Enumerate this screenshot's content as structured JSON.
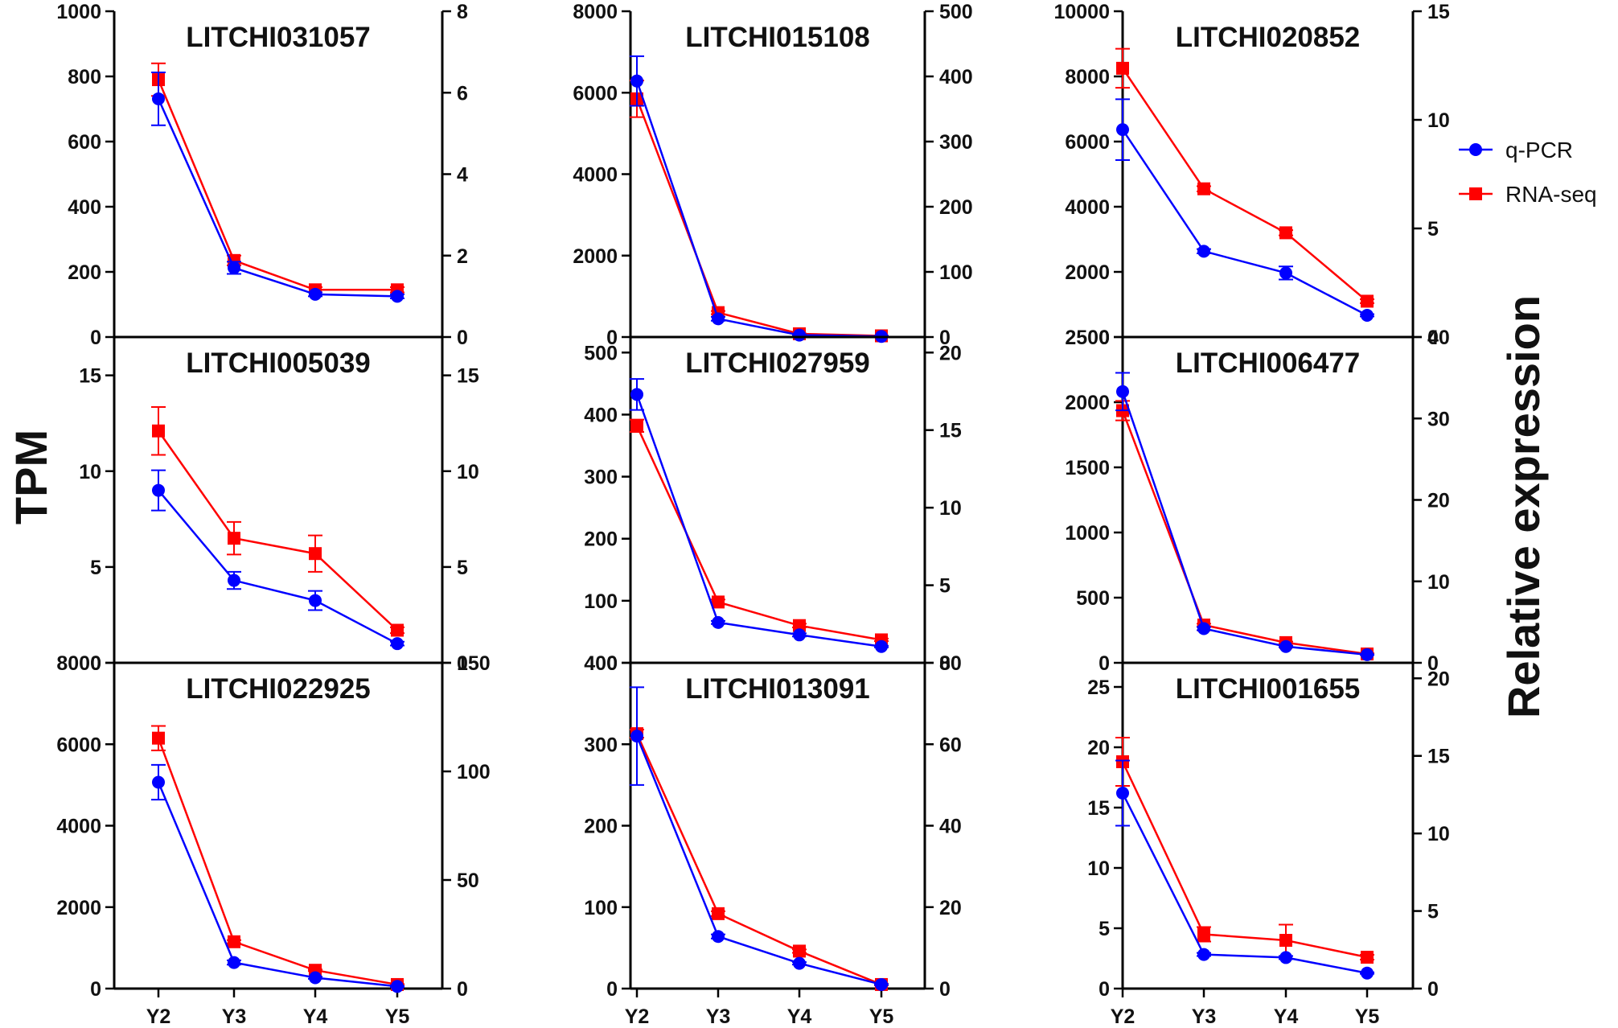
{
  "figure": {
    "y_label_left": "TPM",
    "y_label_right": "Relative expression",
    "x_categories": [
      "Y2",
      "Y3",
      "Y4",
      "Y5"
    ]
  },
  "legend": {
    "position": "right",
    "items": [
      {
        "label": "q-PCR",
        "color": "#0000ff",
        "marker": "circle"
      },
      {
        "label": "RNA-seq",
        "color": "#ff0000",
        "marker": "square"
      }
    ]
  },
  "colors": {
    "qpcr": "#0000ff",
    "rnaseq": "#ff0000",
    "axis": "#000000"
  },
  "chart_data": [
    {
      "type": "line",
      "title": "LITCHI031057",
      "categories": [
        "Y2",
        "Y3",
        "Y4",
        "Y5"
      ],
      "left_ylim": [
        0,
        1000
      ],
      "left_ticks": [
        0,
        200,
        400,
        600,
        800,
        1000
      ],
      "right_ylim": [
        0,
        8
      ],
      "right_ticks": [
        0,
        2,
        4,
        6,
        8
      ],
      "series": [
        {
          "name": "q-PCR",
          "axis": "right",
          "values": [
            5.85,
            1.7,
            1.05,
            1.0
          ],
          "errors": [
            0.65,
            0.15,
            0.05,
            0.05
          ]
        },
        {
          "name": "RNA-seq",
          "axis": "left",
          "values": [
            790,
            235,
            145,
            145
          ],
          "errors": [
            50,
            15,
            8,
            8
          ]
        }
      ]
    },
    {
      "type": "line",
      "title": "LITCHI015108",
      "categories": [
        "Y2",
        "Y3",
        "Y4",
        "Y5"
      ],
      "left_ylim": [
        0,
        8000
      ],
      "left_ticks": [
        0,
        2000,
        4000,
        6000,
        8000
      ],
      "right_ylim": [
        0,
        500
      ],
      "right_ticks": [
        0,
        100,
        200,
        300,
        400,
        500
      ],
      "series": [
        {
          "name": "q-PCR",
          "axis": "right",
          "values": [
            393,
            28,
            3,
            1
          ],
          "errors": [
            38,
            3,
            1,
            1
          ]
        },
        {
          "name": "RNA-seq",
          "axis": "left",
          "values": [
            5850,
            600,
            80,
            30
          ],
          "errors": [
            450,
            40,
            10,
            5
          ]
        }
      ]
    },
    {
      "type": "line",
      "title": "LITCHI020852",
      "categories": [
        "Y2",
        "Y3",
        "Y4",
        "Y5"
      ],
      "left_ylim": [
        0,
        10000
      ],
      "left_ticks": [
        0,
        2000,
        4000,
        6000,
        8000,
        10000
      ],
      "right_ylim": [
        0,
        15
      ],
      "right_ticks": [
        0,
        5,
        10,
        15
      ],
      "series": [
        {
          "name": "q-PCR",
          "axis": "right",
          "values": [
            9.55,
            3.95,
            2.95,
            1.0
          ],
          "errors": [
            1.4,
            0.1,
            0.3,
            0.05
          ]
        },
        {
          "name": "RNA-seq",
          "axis": "left",
          "values": [
            8250,
            4550,
            3200,
            1100
          ],
          "errors": [
            600,
            80,
            80,
            60
          ]
        }
      ]
    },
    {
      "type": "line",
      "title": "LITCHI005039",
      "categories": [
        "Y2",
        "Y3",
        "Y4",
        "Y5"
      ],
      "left_ylim": [
        0,
        17
      ],
      "left_ticks": [
        0,
        5,
        10,
        15
      ],
      "right_ylim": [
        0,
        17
      ],
      "right_ticks": [
        0,
        5,
        10,
        15
      ],
      "series": [
        {
          "name": "q-PCR",
          "axis": "right",
          "values": [
            9.0,
            4.3,
            3.25,
            1.0
          ],
          "errors": [
            1.05,
            0.45,
            0.5,
            0.1
          ]
        },
        {
          "name": "RNA-seq",
          "axis": "left",
          "values": [
            12.1,
            6.5,
            5.7,
            1.7
          ],
          "errors": [
            1.25,
            0.85,
            0.95,
            0.15
          ]
        }
      ]
    },
    {
      "type": "line",
      "title": "LITCHI027959",
      "categories": [
        "Y2",
        "Y3",
        "Y4",
        "Y5"
      ],
      "left_ylim": [
        0,
        525
      ],
      "left_ticks": [
        0,
        100,
        200,
        300,
        400,
        500
      ],
      "right_ylim": [
        0,
        21
      ],
      "right_ticks": [
        0,
        5,
        10,
        15,
        20
      ],
      "series": [
        {
          "name": "q-PCR",
          "axis": "right",
          "values": [
            17.3,
            2.6,
            1.8,
            1.05
          ],
          "errors": [
            1.0,
            0.1,
            0.1,
            0.05
          ]
        },
        {
          "name": "RNA-seq",
          "axis": "left",
          "values": [
            382,
            98,
            60,
            37
          ],
          "errors": [
            10,
            4,
            3,
            2
          ]
        }
      ]
    },
    {
      "type": "line",
      "title": "LITCHI006477",
      "categories": [
        "Y2",
        "Y3",
        "Y4",
        "Y5"
      ],
      "left_ylim": [
        0,
        2500
      ],
      "left_ticks": [
        0,
        500,
        1000,
        1500,
        2000,
        2500
      ],
      "right_ylim": [
        0,
        40
      ],
      "right_ticks": [
        0,
        10,
        20,
        30,
        40
      ],
      "series": [
        {
          "name": "q-PCR",
          "axis": "right",
          "values": [
            33.3,
            4.2,
            2.0,
            1.0
          ],
          "errors": [
            2.3,
            0.2,
            0.1,
            0.05
          ]
        },
        {
          "name": "RNA-seq",
          "axis": "left",
          "values": [
            1935,
            290,
            155,
            68
          ],
          "errors": [
            75,
            10,
            8,
            5
          ]
        }
      ]
    },
    {
      "type": "line",
      "title": "LITCHI022925",
      "categories": [
        "Y2",
        "Y3",
        "Y4",
        "Y5"
      ],
      "left_ylim": [
        0,
        8000
      ],
      "left_ticks": [
        0,
        2000,
        4000,
        6000,
        8000
      ],
      "right_ylim": [
        0,
        150
      ],
      "right_ticks": [
        0,
        50,
        100,
        150
      ],
      "series": [
        {
          "name": "q-PCR",
          "axis": "right",
          "values": [
            95,
            12,
            5,
            1
          ],
          "errors": [
            8,
            1,
            0.5,
            0.2
          ]
        },
        {
          "name": "RNA-seq",
          "axis": "left",
          "values": [
            6150,
            1150,
            450,
            100
          ],
          "errors": [
            300,
            40,
            20,
            10
          ]
        }
      ]
    },
    {
      "type": "line",
      "title": "LITCHI013091",
      "categories": [
        "Y2",
        "Y3",
        "Y4",
        "Y5"
      ],
      "left_ylim": [
        0,
        400
      ],
      "left_ticks": [
        0,
        100,
        200,
        300,
        400
      ],
      "right_ylim": [
        0,
        80
      ],
      "right_ticks": [
        0,
        20,
        40,
        60,
        80
      ],
      "series": [
        {
          "name": "q-PCR",
          "axis": "right",
          "values": [
            62,
            12.8,
            6.2,
            1.0
          ],
          "errors": [
            12,
            0.5,
            0.3,
            0.1
          ]
        },
        {
          "name": "RNA-seq",
          "axis": "left",
          "values": [
            313,
            92,
            46,
            5
          ],
          "errors": [
            5,
            3,
            2,
            1
          ]
        }
      ]
    },
    {
      "type": "line",
      "title": "LITCHI001655",
      "categories": [
        "Y2",
        "Y3",
        "Y4",
        "Y5"
      ],
      "left_ylim": [
        0,
        27
      ],
      "left_ticks": [
        0,
        5,
        10,
        15,
        20,
        25
      ],
      "right_ylim": [
        0,
        21
      ],
      "right_ticks": [
        0,
        5,
        10,
        15,
        20
      ],
      "series": [
        {
          "name": "q-PCR",
          "axis": "right",
          "values": [
            12.6,
            2.2,
            2.0,
            1.0
          ],
          "errors": [
            2.1,
            0.1,
            0.1,
            0.05
          ]
        },
        {
          "name": "RNA-seq",
          "axis": "left",
          "values": [
            18.8,
            4.5,
            4.0,
            2.6
          ],
          "errors": [
            2.0,
            0.6,
            1.3,
            0.2
          ]
        }
      ]
    }
  ]
}
